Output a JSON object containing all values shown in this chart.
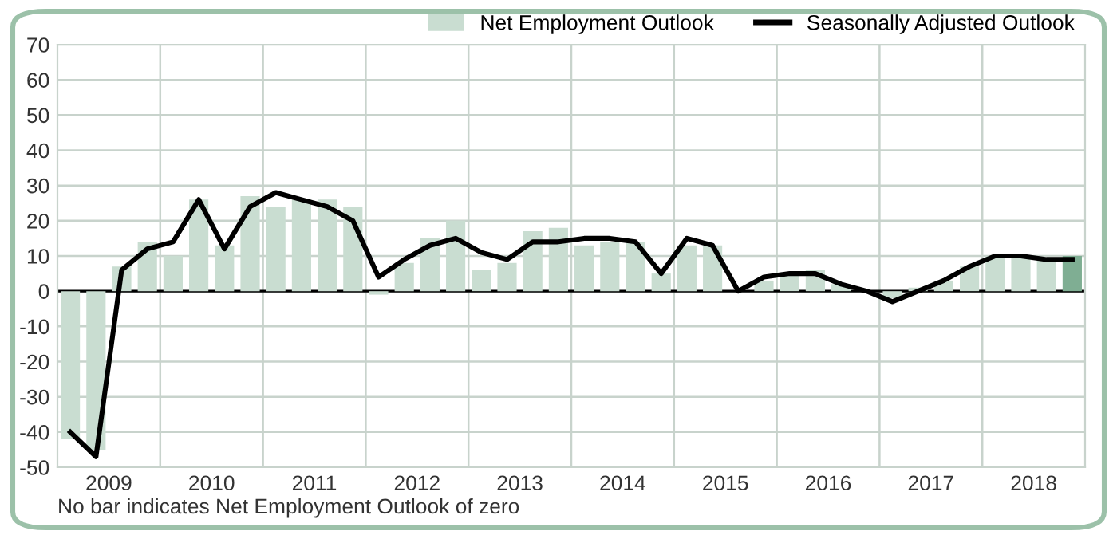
{
  "chart_data": {
    "type": "bar",
    "x": [
      2009.125,
      2009.375,
      2009.625,
      2009.875,
      2010.125,
      2010.375,
      2010.625,
      2010.875,
      2011.125,
      2011.375,
      2011.625,
      2011.875,
      2012.125,
      2012.375,
      2012.625,
      2012.875,
      2013.125,
      2013.375,
      2013.625,
      2013.875,
      2014.125,
      2014.375,
      2014.625,
      2014.875,
      2015.125,
      2015.375,
      2015.625,
      2015.875,
      2016.125,
      2016.375,
      2016.625,
      2016.875,
      2017.125,
      2017.375,
      2017.625,
      2017.875,
      2018.125,
      2018.375,
      2018.625,
      2018.875
    ],
    "series": [
      {
        "name": "Net Employment Outlook",
        "color": "#c9ddd1",
        "colors": [
          "#c9ddd1",
          "#c9ddd1",
          "#c9ddd1",
          "#c9ddd1",
          "#c9ddd1",
          "#c9ddd1",
          "#c9ddd1",
          "#c9ddd1",
          "#c9ddd1",
          "#c9ddd1",
          "#c9ddd1",
          "#c9ddd1",
          "#c9ddd1",
          "#c9ddd1",
          "#c9ddd1",
          "#c9ddd1",
          "#c9ddd1",
          "#c9ddd1",
          "#c9ddd1",
          "#c9ddd1",
          "#c9ddd1",
          "#c9ddd1",
          "#c9ddd1",
          "#c9ddd1",
          "#c9ddd1",
          "#c9ddd1",
          "#c9ddd1",
          "#c9ddd1",
          "#c9ddd1",
          "#c9ddd1",
          "#c9ddd1",
          "#c9ddd1",
          "#c9ddd1",
          "#c9ddd1",
          "#c9ddd1",
          "#c9ddd1",
          "#c9ddd1",
          "#c9ddd1",
          "#c9ddd1",
          "#7fae93"
        ],
        "values": [
          -42,
          -45,
          7,
          14,
          10,
          26,
          13,
          27,
          24,
          26,
          26,
          24,
          -1,
          8,
          15,
          20,
          6,
          8,
          17,
          18,
          13,
          14,
          14,
          5,
          13,
          13,
          0,
          3,
          5,
          6,
          2,
          0,
          -2,
          1,
          3,
          7,
          10,
          10,
          9,
          10
        ]
      },
      {
        "name": "Seasonally Adjusted Outlook",
        "type": "line",
        "color": "#000000",
        "values": [
          -40,
          -47,
          6,
          12,
          14,
          26,
          12,
          24,
          28,
          26,
          24,
          20,
          4,
          9,
          13,
          15,
          11,
          9,
          14,
          14,
          15,
          15,
          14,
          5,
          15,
          13,
          0,
          4,
          5,
          5,
          2,
          0,
          -3,
          0,
          3,
          7,
          10,
          10,
          9,
          9
        ]
      }
    ],
    "xlim": [
      2009,
      2019
    ],
    "xticks": [
      {
        "value": 2009.5,
        "label": "2009"
      },
      {
        "value": 2010,
        "label": null
      },
      {
        "value": 2010.5,
        "label": "2010"
      },
      {
        "value": 2011,
        "label": null
      },
      {
        "value": 2011.5,
        "label": "2011"
      },
      {
        "value": 2012,
        "label": null
      },
      {
        "value": 2012.5,
        "label": "2012"
      },
      {
        "value": 2013,
        "label": null
      },
      {
        "value": 2013.5,
        "label": "2013"
      },
      {
        "value": 2014,
        "label": null
      },
      {
        "value": 2014.5,
        "label": "2014"
      },
      {
        "value": 2015,
        "label": null
      },
      {
        "value": 2015.5,
        "label": "2015"
      },
      {
        "value": 2016,
        "label": null
      },
      {
        "value": 2016.5,
        "label": "2016"
      },
      {
        "value": 2017,
        "label": null
      },
      {
        "value": 2017.5,
        "label": "2017"
      },
      {
        "value": 2018,
        "label": null
      },
      {
        "value": 2018.5,
        "label": "2018"
      }
    ],
    "ylim": [
      -50,
      70
    ],
    "yticks": [
      -50,
      -40,
      -30,
      -20,
      -10,
      0,
      10,
      20,
      30,
      40,
      50,
      60,
      70
    ],
    "ref_lines": [
      {
        "axis": "y",
        "value": 0,
        "color": "#000000"
      }
    ],
    "grid": true,
    "legend": "top right",
    "marker": "none",
    "line_style": "solid",
    "annotations": [
      "No bar indicates Net Employment Outlook of zero"
    ]
  }
}
